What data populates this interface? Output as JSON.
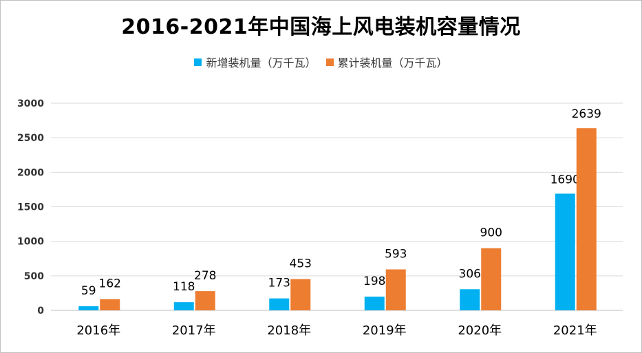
{
  "chart_data": {
    "type": "bar",
    "title": "2016-2021年中国海上风电装机容量情况",
    "categories": [
      "2016年",
      "2017年",
      "2018年",
      "2019年",
      "2020年",
      "2021年"
    ],
    "series": [
      {
        "name": "新增装机量（万千瓦）",
        "values": [
          59,
          118,
          173,
          198,
          306,
          1690
        ],
        "color": "#00b0f0"
      },
      {
        "name": "累计装机量（万千瓦）",
        "values": [
          162,
          278,
          453,
          593,
          900,
          2639
        ],
        "color": "#ed7d31"
      }
    ],
    "yticks": [
      "0",
      "500",
      "1000",
      "1500",
      "2000",
      "2500",
      "3000"
    ],
    "ylim": [
      0,
      3000
    ],
    "grid": true,
    "legend_position": "top"
  }
}
